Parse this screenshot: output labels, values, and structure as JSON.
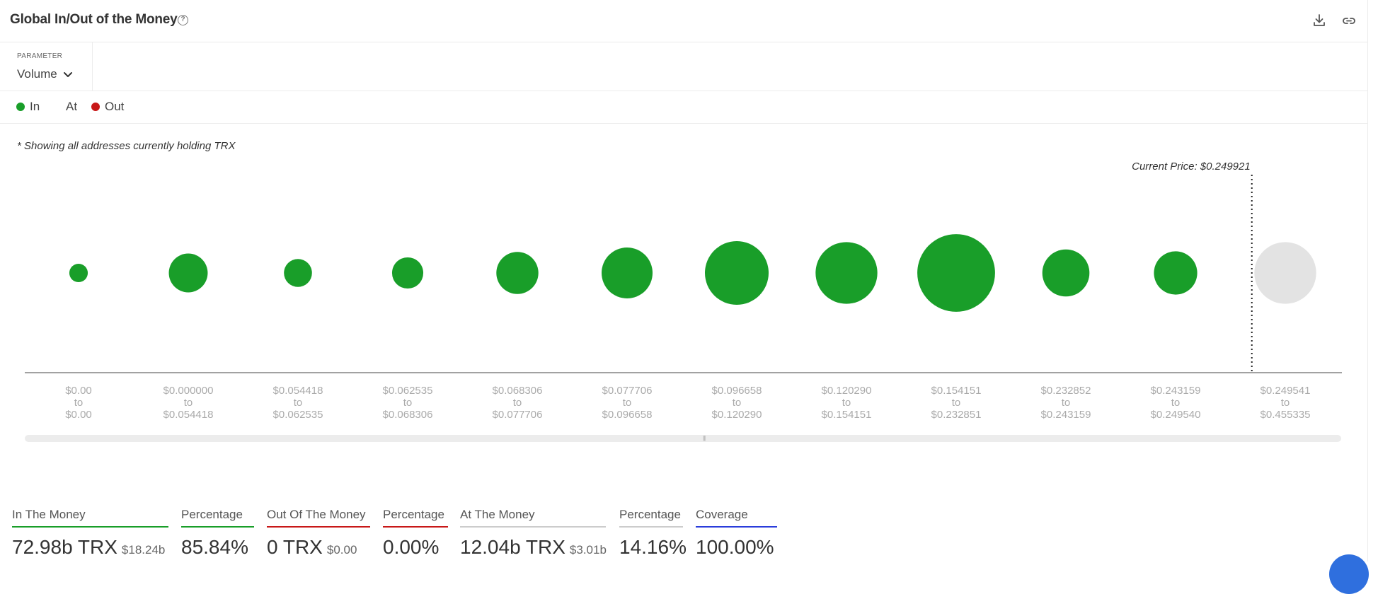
{
  "header": {
    "title": "Global In/Out of the Money",
    "help_glyph": "?",
    "icons": [
      "download-icon",
      "link-icon"
    ]
  },
  "parameter": {
    "label": "PARAMETER",
    "value": "Volume"
  },
  "legend": {
    "in": "In",
    "at": "At",
    "out": "Out"
  },
  "colors": {
    "in": "#199e29",
    "out": "#c81818",
    "at": "#e3e3e3",
    "coverage": "#2a3ddb",
    "neutral_line": "#cccccc"
  },
  "note": "* Showing all addresses currently holding TRX",
  "chart_data": {
    "type": "scatter",
    "title": "",
    "current_price_label": "Current Price: $0.249921",
    "current_price": 0.249921,
    "range_connector": "to",
    "buckets": [
      {
        "from": "$0.00",
        "to": "$0.00",
        "status": "in",
        "relative_size": 0.29
      },
      {
        "from": "$0.000000",
        "to": "$0.054418",
        "status": "in",
        "relative_size": 0.61
      },
      {
        "from": "$0.054418",
        "to": "$0.062535",
        "status": "in",
        "relative_size": 0.44
      },
      {
        "from": "$0.062535",
        "to": "$0.068306",
        "status": "in",
        "relative_size": 0.49
      },
      {
        "from": "$0.068306",
        "to": "$0.077706",
        "status": "in",
        "relative_size": 0.66
      },
      {
        "from": "$0.077706",
        "to": "$0.096658",
        "status": "in",
        "relative_size": 0.8
      },
      {
        "from": "$0.096658",
        "to": "$0.120290",
        "status": "in",
        "relative_size": 1.0
      },
      {
        "from": "$0.120290",
        "to": "$0.154151",
        "status": "in",
        "relative_size": 0.97
      },
      {
        "from": "$0.154151",
        "to": "$0.232851",
        "status": "in",
        "relative_size": 1.22
      },
      {
        "from": "$0.232852",
        "to": "$0.243159",
        "status": "in",
        "relative_size": 0.74
      },
      {
        "from": "$0.243159",
        "to": "$0.249540",
        "status": "in",
        "relative_size": 0.68
      },
      {
        "from": "$0.249541",
        "to": "$0.455335",
        "status": "at",
        "relative_size": 0.97
      }
    ]
  },
  "stats": {
    "in_money": {
      "label": "In The Money",
      "value": "72.98b TRX",
      "sub": "$18.24b"
    },
    "in_pct": {
      "label": "Percentage",
      "value": "85.84%"
    },
    "out_money": {
      "label": "Out Of The Money",
      "value": "0 TRX",
      "sub": "$0.00"
    },
    "out_pct": {
      "label": "Percentage",
      "value": "0.00%"
    },
    "at_money": {
      "label": "At The Money",
      "value": "12.04b TRX",
      "sub": "$3.01b"
    },
    "at_pct": {
      "label": "Percentage",
      "value": "14.16%"
    },
    "coverage": {
      "label": "Coverage",
      "value": "100.00%"
    }
  }
}
